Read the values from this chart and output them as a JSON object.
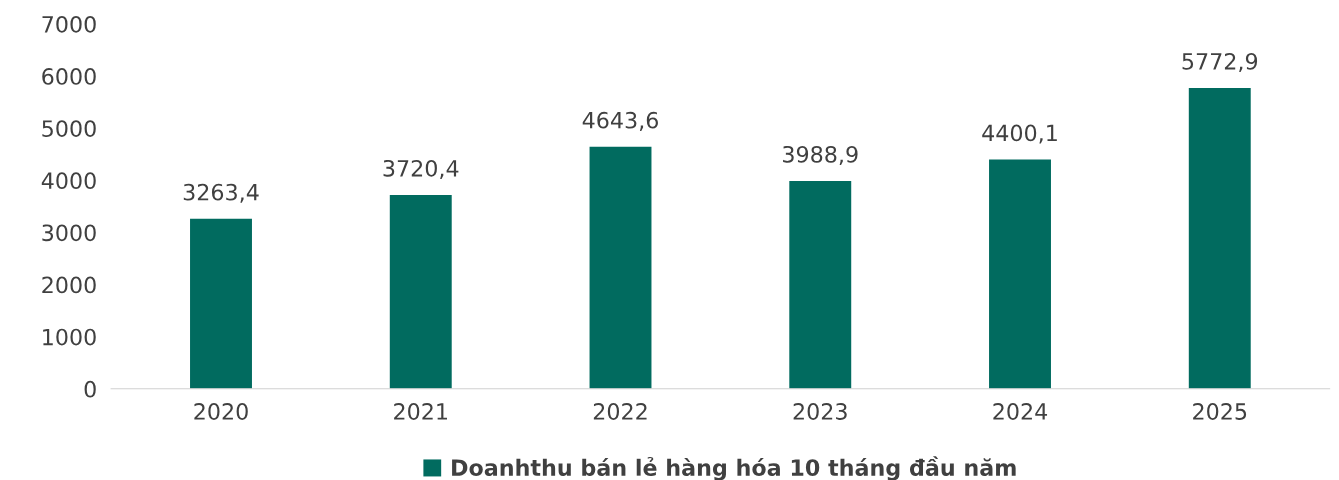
{
  "chart_data": {
    "type": "bar",
    "categories": [
      "2020",
      "2021",
      "2022",
      "2023",
      "2024",
      "2025"
    ],
    "series": [
      {
        "name": "Doanhthu bán lẻ hàng hóa 10 tháng đầu năm",
        "color": "#016b5f",
        "values": [
          3263.4,
          3720.4,
          4643.6,
          3988.9,
          4400.1,
          5772.9
        ],
        "value_labels": [
          "3263,4",
          "3720,4",
          "4643,6",
          "3988,9",
          "4400,1",
          "5772,9"
        ]
      }
    ],
    "ylim": [
      0,
      7000
    ],
    "yticks": [
      0,
      1000,
      2000,
      3000,
      4000,
      5000,
      6000,
      7000
    ],
    "grid": false,
    "legend": "bottom"
  }
}
